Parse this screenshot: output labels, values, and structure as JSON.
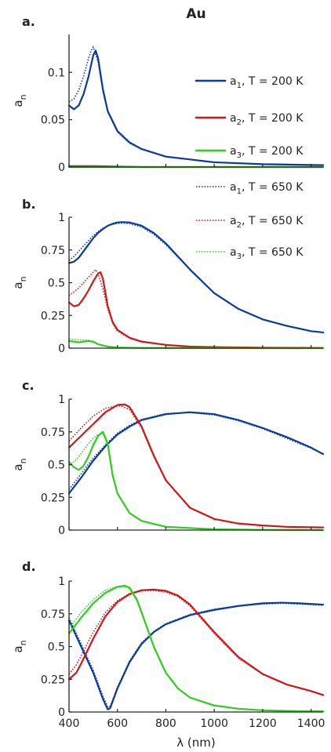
{
  "figure": {
    "title": "Au",
    "xlabel": "λ (nm)",
    "ylabel_main": "a",
    "ylabel_sub": "n"
  },
  "legend": [
    {
      "base": "a",
      "sub": "1",
      "rest": ", T = 200 K",
      "color": "#0b3a9a",
      "style": "solid"
    },
    {
      "base": "a",
      "sub": "2",
      "rest": ", T = 200 K",
      "color": "#c8191b",
      "style": "solid"
    },
    {
      "base": "a",
      "sub": "3",
      "rest": ", T = 200 K",
      "color": "#2fcd1e",
      "style": "solid"
    },
    {
      "base": "a",
      "sub": "1",
      "rest": ", T = 650 K",
      "color": "#0b3a9a",
      "style": "dotted"
    },
    {
      "base": "a",
      "sub": "2",
      "rest": ", T = 650 K",
      "color": "#c8191b",
      "style": "dotted"
    },
    {
      "base": "a",
      "sub": "3",
      "rest": ", T = 650 K",
      "color": "#2fcd1e",
      "style": "dotted"
    }
  ],
  "chart_data": [
    {
      "type": "line",
      "panel": "a.",
      "xlim": [
        400,
        1450
      ],
      "ylim": [
        0,
        0.14
      ],
      "yticks": [
        0,
        0.05,
        0.1
      ],
      "ytick_labels": [
        "0",
        "0.05",
        "0.1"
      ],
      "xticks": [
        400,
        600,
        800,
        1000,
        1200,
        1400
      ],
      "show_xtick_labels": false,
      "series": [
        {
          "name": "a1, T = 200 K",
          "color": "#0b3a9a",
          "style": "solid",
          "x": [
            400,
            420,
            440,
            460,
            480,
            500,
            510,
            520,
            540,
            560,
            600,
            650,
            700,
            800,
            900,
            1000,
            1200,
            1450
          ],
          "y": [
            0.065,
            0.061,
            0.065,
            0.077,
            0.095,
            0.118,
            0.123,
            0.115,
            0.082,
            0.059,
            0.038,
            0.026,
            0.019,
            0.011,
            0.008,
            0.005,
            0.003,
            0.002
          ]
        },
        {
          "name": "a1, T = 650 K",
          "color": "#0b3a9a",
          "style": "dotted",
          "x": [
            400,
            420,
            440,
            460,
            480,
            490,
            500,
            520,
            540,
            560,
            600,
            650,
            700,
            800,
            900,
            1000,
            1200,
            1450
          ],
          "y": [
            0.069,
            0.072,
            0.081,
            0.096,
            0.114,
            0.122,
            0.127,
            0.111,
            0.08,
            0.058,
            0.037,
            0.025,
            0.019,
            0.011,
            0.008,
            0.005,
            0.003,
            0.002
          ]
        },
        {
          "name": "a2, T = 200 K",
          "color": "#c8191b",
          "style": "solid",
          "x": [
            400,
            500,
            700,
            1000,
            1450
          ],
          "y": [
            0.001,
            0.001,
            0.0,
            0.0,
            0.0
          ]
        },
        {
          "name": "a2, T = 650 K",
          "color": "#c8191b",
          "style": "dotted",
          "x": [
            400,
            500,
            700,
            1000,
            1450
          ],
          "y": [
            0.001,
            0.001,
            0.0,
            0.0,
            0.0
          ]
        },
        {
          "name": "a3, T = 200 K",
          "color": "#2fcd1e",
          "style": "solid",
          "x": [
            400,
            1450
          ],
          "y": [
            0.0,
            0.0
          ]
        },
        {
          "name": "a3, T = 650 K",
          "color": "#2fcd1e",
          "style": "dotted",
          "x": [
            400,
            1450
          ],
          "y": [
            0.0,
            0.0
          ]
        }
      ]
    },
    {
      "type": "line",
      "panel": "b.",
      "xlim": [
        400,
        1450
      ],
      "ylim": [
        0,
        1
      ],
      "yticks": [
        0,
        0.25,
        0.5,
        0.75,
        1
      ],
      "ytick_labels": [
        "0",
        "0.25",
        "0.5",
        "0.75",
        "1"
      ],
      "xticks": [
        400,
        600,
        800,
        1000,
        1200,
        1400
      ],
      "show_xtick_labels": false,
      "series": [
        {
          "name": "a1, T = 200 K",
          "color": "#0b3a9a",
          "style": "solid",
          "x": [
            400,
            420,
            440,
            460,
            480,
            500,
            520,
            540,
            560,
            580,
            600,
            620,
            650,
            700,
            750,
            800,
            900,
            1000,
            1100,
            1200,
            1300,
            1400,
            1450
          ],
          "y": [
            0.65,
            0.66,
            0.69,
            0.74,
            0.79,
            0.84,
            0.88,
            0.91,
            0.935,
            0.95,
            0.96,
            0.963,
            0.96,
            0.935,
            0.88,
            0.8,
            0.6,
            0.42,
            0.3,
            0.22,
            0.17,
            0.13,
            0.12
          ]
        },
        {
          "name": "a1, T = 650 K",
          "color": "#0b3a9a",
          "style": "dotted",
          "x": [
            400,
            420,
            440,
            460,
            480,
            500,
            520,
            540,
            560,
            580,
            600,
            620,
            650,
            700,
            750,
            800,
            900,
            1000,
            1100,
            1200,
            1300,
            1400,
            1450
          ],
          "y": [
            0.67,
            0.7,
            0.74,
            0.78,
            0.82,
            0.86,
            0.89,
            0.915,
            0.935,
            0.945,
            0.952,
            0.955,
            0.952,
            0.925,
            0.87,
            0.79,
            0.6,
            0.42,
            0.3,
            0.22,
            0.17,
            0.13,
            0.12
          ]
        },
        {
          "name": "a2, T = 200 K",
          "color": "#c8191b",
          "style": "solid",
          "x": [
            400,
            420,
            440,
            460,
            480,
            500,
            520,
            530,
            540,
            560,
            580,
            600,
            650,
            700,
            800,
            900,
            1000,
            1200,
            1450
          ],
          "y": [
            0.35,
            0.32,
            0.33,
            0.38,
            0.44,
            0.51,
            0.57,
            0.58,
            0.53,
            0.32,
            0.2,
            0.14,
            0.08,
            0.05,
            0.025,
            0.012,
            0.008,
            0.004,
            0.002
          ]
        },
        {
          "name": "a2, T = 650 K",
          "color": "#c8191b",
          "style": "dotted",
          "x": [
            400,
            420,
            440,
            460,
            480,
            500,
            510,
            520,
            540,
            560,
            580,
            600,
            650,
            700,
            800,
            900,
            1000,
            1200,
            1450
          ],
          "y": [
            0.4,
            0.43,
            0.46,
            0.5,
            0.54,
            0.58,
            0.6,
            0.57,
            0.45,
            0.3,
            0.19,
            0.13,
            0.075,
            0.048,
            0.024,
            0.012,
            0.008,
            0.004,
            0.002
          ]
        },
        {
          "name": "a3, T = 200 K",
          "color": "#2fcd1e",
          "style": "solid",
          "x": [
            400,
            440,
            480,
            500,
            520,
            560,
            600,
            700,
            1450
          ],
          "y": [
            0.055,
            0.045,
            0.055,
            0.05,
            0.03,
            0.012,
            0.005,
            0.002,
            0.0
          ]
        },
        {
          "name": "a3, T = 650 K",
          "color": "#2fcd1e",
          "style": "dotted",
          "x": [
            400,
            440,
            480,
            500,
            520,
            560,
            600,
            700,
            1450
          ],
          "y": [
            0.07,
            0.065,
            0.06,
            0.045,
            0.03,
            0.012,
            0.005,
            0.002,
            0.0
          ]
        }
      ]
    },
    {
      "type": "line",
      "panel": "c.",
      "xlim": [
        400,
        1450
      ],
      "ylim": [
        0,
        1
      ],
      "yticks": [
        0,
        0.25,
        0.5,
        0.75,
        1
      ],
      "ytick_labels": [
        "0",
        "0.25",
        "0.5",
        "0.75",
        "1"
      ],
      "xticks": [
        400,
        600,
        800,
        1000,
        1200,
        1400
      ],
      "show_xtick_labels": false,
      "series": [
        {
          "name": "a1, T = 200 K",
          "color": "#0b3a9a",
          "style": "solid",
          "x": [
            400,
            450,
            500,
            550,
            600,
            650,
            700,
            800,
            900,
            1000,
            1100,
            1200,
            1300,
            1400,
            1450
          ],
          "y": [
            0.28,
            0.4,
            0.53,
            0.64,
            0.73,
            0.79,
            0.84,
            0.885,
            0.9,
            0.885,
            0.84,
            0.78,
            0.71,
            0.63,
            0.58
          ]
        },
        {
          "name": "a1, T = 650 K",
          "color": "#0b3a9a",
          "style": "dotted",
          "x": [
            400,
            450,
            500,
            550,
            600,
            650,
            700,
            800,
            900,
            1000,
            1100,
            1200,
            1300,
            1400,
            1450
          ],
          "y": [
            0.31,
            0.43,
            0.55,
            0.65,
            0.74,
            0.8,
            0.845,
            0.89,
            0.897,
            0.88,
            0.835,
            0.775,
            0.7,
            0.625,
            0.58
          ]
        },
        {
          "name": "a2, T = 200 K",
          "color": "#c8191b",
          "style": "solid",
          "x": [
            400,
            450,
            500,
            550,
            600,
            630,
            650,
            700,
            750,
            800,
            900,
            1000,
            1100,
            1200,
            1300,
            1450
          ],
          "y": [
            0.63,
            0.72,
            0.81,
            0.9,
            0.955,
            0.96,
            0.94,
            0.79,
            0.57,
            0.38,
            0.17,
            0.085,
            0.05,
            0.035,
            0.025,
            0.02
          ]
        },
        {
          "name": "a2, T = 650 K",
          "color": "#c8191b",
          "style": "dotted",
          "x": [
            400,
            450,
            500,
            550,
            600,
            620,
            650,
            700,
            750,
            800,
            900,
            1000,
            1100,
            1200,
            1300,
            1450
          ],
          "y": [
            0.68,
            0.78,
            0.87,
            0.93,
            0.95,
            0.945,
            0.92,
            0.78,
            0.56,
            0.38,
            0.17,
            0.085,
            0.05,
            0.035,
            0.025,
            0.02
          ]
        },
        {
          "name": "a3, T = 200 K",
          "color": "#2fcd1e",
          "style": "solid",
          "x": [
            400,
            420,
            440,
            460,
            480,
            500,
            520,
            540,
            560,
            580,
            600,
            650,
            700,
            800,
            1000,
            1200,
            1450
          ],
          "y": [
            0.52,
            0.48,
            0.46,
            0.49,
            0.56,
            0.65,
            0.72,
            0.75,
            0.66,
            0.42,
            0.28,
            0.13,
            0.07,
            0.025,
            0.006,
            0.002,
            0.0
          ]
        },
        {
          "name": "a3, T = 650 K",
          "color": "#2fcd1e",
          "style": "dotted",
          "x": [
            400,
            420,
            440,
            460,
            480,
            500,
            520,
            540,
            560,
            580,
            600,
            650,
            700,
            800,
            1000,
            1200,
            1450
          ],
          "y": [
            0.49,
            0.52,
            0.56,
            0.61,
            0.66,
            0.7,
            0.73,
            0.74,
            0.64,
            0.41,
            0.28,
            0.13,
            0.07,
            0.025,
            0.006,
            0.002,
            0.0
          ]
        }
      ]
    },
    {
      "type": "line",
      "panel": "d.",
      "xlim": [
        400,
        1450
      ],
      "ylim": [
        0,
        1
      ],
      "yticks": [
        0,
        0.25,
        0.5,
        0.75,
        1
      ],
      "ytick_labels": [
        "0",
        "0.25",
        "0.5",
        "0.75",
        "1"
      ],
      "xticks": [
        400,
        600,
        800,
        1000,
        1200,
        1400
      ],
      "show_xtick_labels": true,
      "xtick_labels": [
        "400",
        "600",
        "800",
        "1000",
        "1200",
        "1400"
      ],
      "series": [
        {
          "name": "a1, T = 200 K",
          "color": "#0b3a9a",
          "style": "solid",
          "x": [
            400,
            450,
            500,
            540,
            560,
            570,
            580,
            600,
            650,
            700,
            750,
            800,
            900,
            1000,
            1100,
            1200,
            1280,
            1350,
            1450
          ],
          "y": [
            0.7,
            0.5,
            0.3,
            0.1,
            0.02,
            0.03,
            0.08,
            0.18,
            0.38,
            0.52,
            0.61,
            0.67,
            0.74,
            0.78,
            0.81,
            0.83,
            0.835,
            0.83,
            0.82
          ]
        },
        {
          "name": "a1, T = 650 K",
          "color": "#0b3a9a",
          "style": "dotted",
          "x": [
            400,
            450,
            500,
            540,
            560,
            570,
            580,
            600,
            650,
            700,
            750,
            800,
            900,
            1000,
            1100,
            1200,
            1280,
            1350,
            1450
          ],
          "y": [
            0.72,
            0.52,
            0.32,
            0.12,
            0.04,
            0.045,
            0.09,
            0.19,
            0.39,
            0.53,
            0.615,
            0.675,
            0.745,
            0.785,
            0.81,
            0.825,
            0.83,
            0.825,
            0.815
          ]
        },
        {
          "name": "a2, T = 200 K",
          "color": "#c8191b",
          "style": "solid",
          "x": [
            400,
            430,
            450,
            500,
            550,
            600,
            650,
            700,
            750,
            800,
            850,
            900,
            1000,
            1100,
            1200,
            1300,
            1400,
            1450
          ],
          "y": [
            0.25,
            0.3,
            0.37,
            0.56,
            0.73,
            0.84,
            0.9,
            0.93,
            0.935,
            0.925,
            0.89,
            0.82,
            0.61,
            0.42,
            0.29,
            0.21,
            0.16,
            0.13
          ]
        },
        {
          "name": "a2, T = 650 K",
          "color": "#c8191b",
          "style": "dotted",
          "x": [
            400,
            430,
            450,
            500,
            550,
            600,
            650,
            700,
            750,
            800,
            850,
            900,
            1000,
            1100,
            1200,
            1300,
            1400,
            1450
          ],
          "y": [
            0.29,
            0.36,
            0.43,
            0.61,
            0.76,
            0.85,
            0.905,
            0.925,
            0.928,
            0.915,
            0.88,
            0.81,
            0.6,
            0.41,
            0.29,
            0.21,
            0.16,
            0.13
          ]
        },
        {
          "name": "a3, T = 200 K",
          "color": "#2fcd1e",
          "style": "solid",
          "x": [
            400,
            450,
            500,
            550,
            600,
            630,
            650,
            680,
            700,
            750,
            800,
            850,
            900,
            1000,
            1100,
            1200,
            1300,
            1450
          ],
          "y": [
            0.6,
            0.72,
            0.83,
            0.91,
            0.955,
            0.965,
            0.95,
            0.86,
            0.76,
            0.5,
            0.3,
            0.18,
            0.11,
            0.05,
            0.025,
            0.013,
            0.008,
            0.005
          ]
        },
        {
          "name": "a3, T = 650 K",
          "color": "#2fcd1e",
          "style": "dotted",
          "x": [
            400,
            450,
            500,
            550,
            600,
            630,
            650,
            680,
            700,
            750,
            800,
            850,
            900,
            1000,
            1100,
            1200,
            1300,
            1450
          ],
          "y": [
            0.64,
            0.76,
            0.86,
            0.93,
            0.96,
            0.955,
            0.94,
            0.85,
            0.75,
            0.5,
            0.3,
            0.18,
            0.11,
            0.05,
            0.025,
            0.013,
            0.008,
            0.005
          ]
        }
      ]
    }
  ]
}
